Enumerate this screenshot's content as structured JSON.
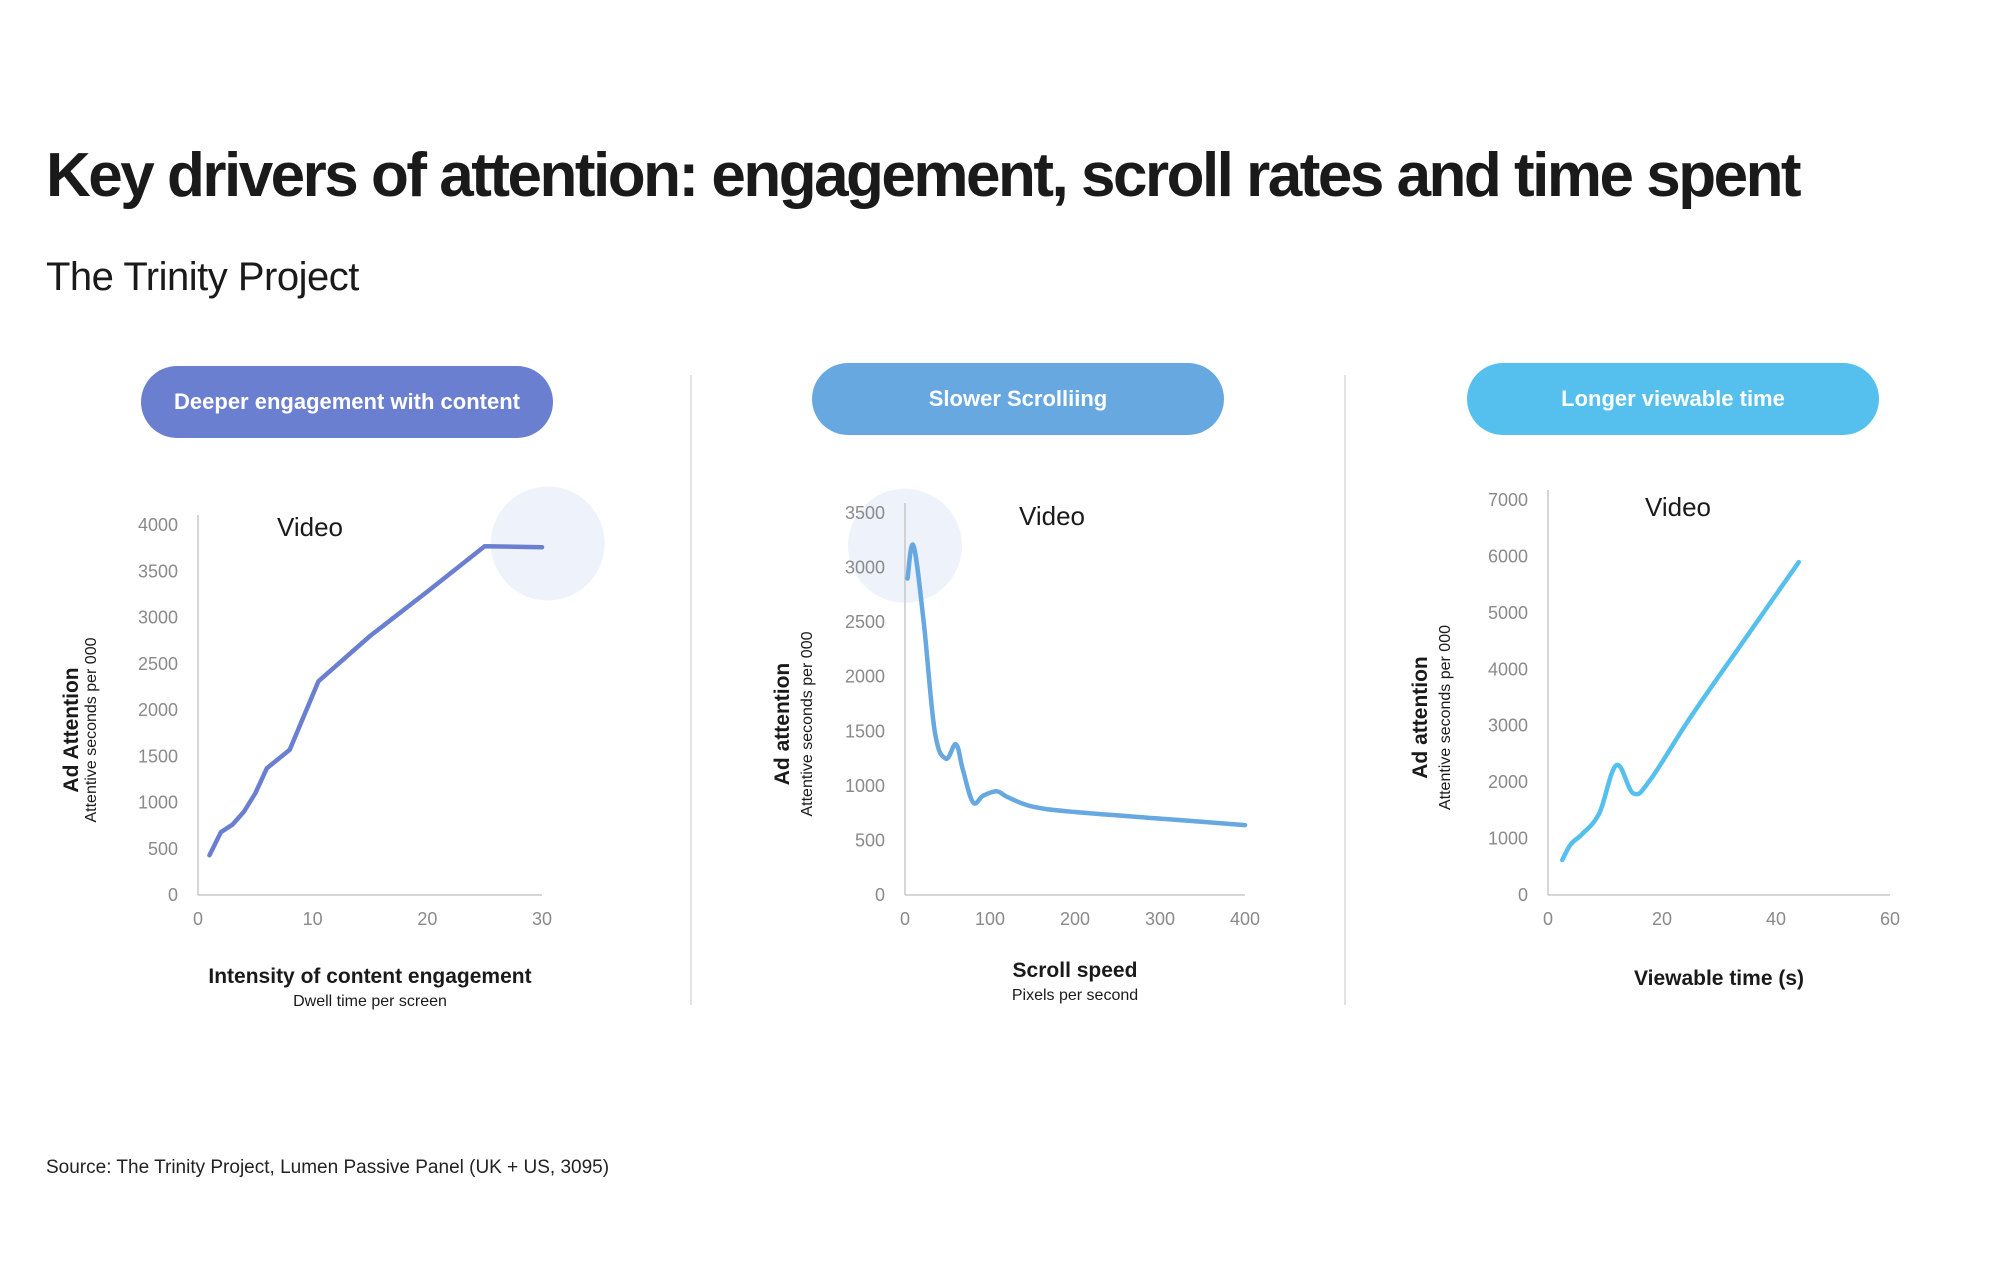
{
  "title": "Key drivers of attention: engagement, scroll rates and time spent",
  "subtitle": "The Trinity Project",
  "source": "Source: The Trinity Project, Lumen Passive Panel (UK + US, 3095)",
  "colors": {
    "engagement": "#6b7fd1",
    "scroll": "#67a8e0",
    "viewable": "#55c0ed",
    "axis": "#c8c8c8",
    "tick_text": "#8a8a8a",
    "highlight": "#eef2fb"
  },
  "pills": [
    {
      "label": "Deeper engagement with content",
      "color": "#6b7fd1"
    },
    {
      "label": "Slower Scrolliing",
      "color": "#67a8e0"
    },
    {
      "label": "Longer viewable time",
      "color": "#55c0ed"
    }
  ],
  "chart_data": [
    {
      "type": "line",
      "title": "Video",
      "xlabel": "Intensity of content engagement",
      "xlabel_sub": "Dwell time per screen",
      "ylabel": "Ad Attention",
      "ylabel_sub": "Attentive seconds per 000",
      "xlim": [
        0,
        30
      ],
      "ylim": [
        0,
        4000
      ],
      "xticks": [
        0,
        10,
        20,
        30
      ],
      "yticks": [
        0,
        500,
        1000,
        1500,
        2000,
        2500,
        3000,
        3500,
        4000
      ],
      "color": "#6b7fd1",
      "smooth": false,
      "highlight_point": [
        30.5,
        3800
      ],
      "x": [
        1,
        2,
        3,
        4,
        5,
        6,
        8,
        10.5,
        15,
        20,
        25,
        30
      ],
      "y": [
        430,
        680,
        760,
        900,
        1100,
        1370,
        1570,
        2310,
        2800,
        3280,
        3770,
        3760
      ]
    },
    {
      "type": "line",
      "title": "Video",
      "xlabel": "Scroll speed",
      "xlabel_sub": "Pixels per second",
      "ylabel": "Ad attention",
      "ylabel_sub": "Attentive seconds per 000",
      "xlim": [
        0,
        400
      ],
      "ylim": [
        0,
        3500
      ],
      "xticks": [
        0,
        100,
        200,
        300,
        400
      ],
      "yticks": [
        0,
        500,
        1000,
        1500,
        2000,
        2500,
        3000,
        3500
      ],
      "color": "#67a8e0",
      "smooth": true,
      "highlight_point": [
        0,
        3200
      ],
      "x": [
        3,
        10,
        22,
        35,
        48,
        60,
        68,
        80,
        92,
        108,
        120,
        150,
        200,
        300,
        400
      ],
      "y": [
        2900,
        3200,
        2500,
        1500,
        1250,
        1380,
        1150,
        850,
        910,
        950,
        900,
        810,
        760,
        700,
        640
      ]
    },
    {
      "type": "line",
      "title": "Video",
      "xlabel": "Viewable time (s)",
      "xlabel_sub": "",
      "ylabel": "Ad attention",
      "ylabel_sub": "Attentive seconds per 000",
      "xlim": [
        0,
        60
      ],
      "ylim": [
        0,
        7000
      ],
      "xticks": [
        0,
        20,
        40,
        60
      ],
      "yticks": [
        0,
        1000,
        2000,
        3000,
        4000,
        5000,
        6000,
        7000
      ],
      "color": "#55c0ed",
      "smooth": true,
      "x": [
        2.5,
        4,
        6,
        9,
        12,
        15,
        18,
        25,
        35,
        44
      ],
      "y": [
        620,
        900,
        1080,
        1450,
        2300,
        1800,
        2050,
        3150,
        4600,
        5900
      ]
    }
  ]
}
